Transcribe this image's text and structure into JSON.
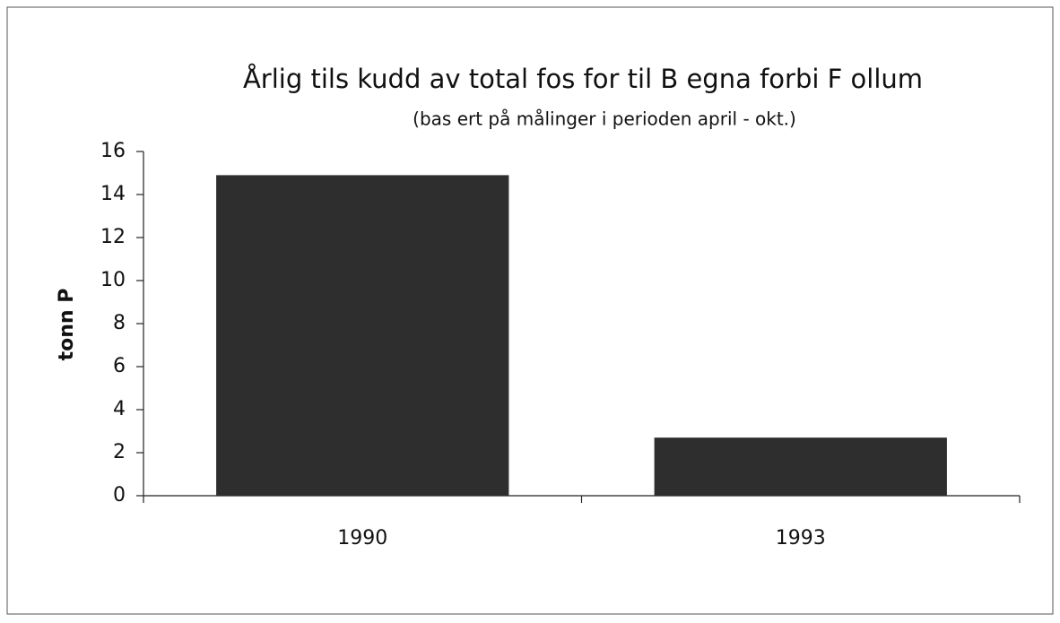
{
  "chart_data": {
    "type": "bar",
    "title": "Årlig tils kudd av total fos for til B egna forbi F ollum",
    "subtitle": "(bas ert på målinger i perioden april - okt.)",
    "y_label": "tonn P",
    "categories": [
      "1990",
      "1993"
    ],
    "values": [
      14.9,
      2.7
    ],
    "color": "#2e2e2e",
    "ylim": [
      0,
      16
    ],
    "yticks": [
      0,
      2,
      4,
      6,
      8,
      10,
      12,
      14,
      16
    ],
    "grid": false
  }
}
